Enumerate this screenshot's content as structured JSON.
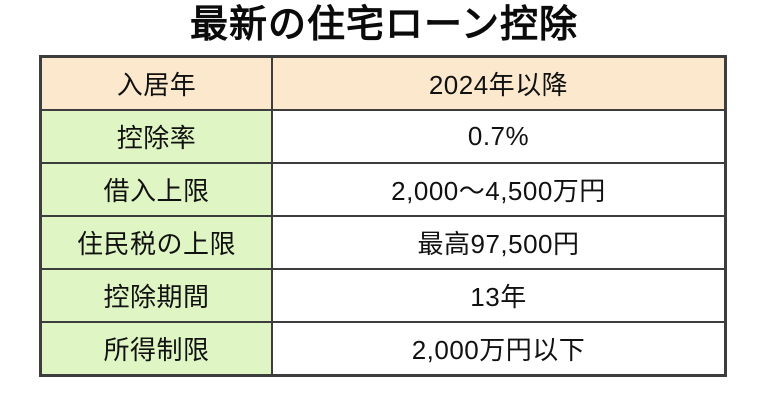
{
  "title": "最新の住宅ローン控除",
  "table": {
    "rows": [
      {
        "label": "入居年",
        "value": "2024年以降"
      },
      {
        "label": "控除率",
        "value": "0.7%"
      },
      {
        "label": "借入上限",
        "value": "2,000〜4,500万円"
      },
      {
        "label": "住民税の上限",
        "value": "最高97,500円"
      },
      {
        "label": "控除期間",
        "value": "13年"
      },
      {
        "label": "所得制限",
        "value": "2,000万円以下"
      }
    ]
  },
  "colors": {
    "header_row_bg": "#fce9cd",
    "label_column_bg": "#dff5c3",
    "value_cell_bg": "#ffffff",
    "border": "#3d3d3d",
    "text": "#111111",
    "page_bg": "#ffffff"
  },
  "chart_data": {
    "type": "table",
    "title": "最新の住宅ローン控除",
    "header_row": [
      "入居年",
      "2024年以降"
    ],
    "rows": [
      [
        "入居年",
        "2024年以降"
      ],
      [
        "控除率",
        "0.7%"
      ],
      [
        "借入上限",
        "2,000〜4,500万円"
      ],
      [
        "住民税の上限",
        "最高97,500円"
      ],
      [
        "控除期間",
        "13年"
      ],
      [
        "所得制限",
        "2,000万円以下"
      ]
    ],
    "layout": {
      "columns": 2,
      "first_row_highlighted": true,
      "label_column_highlighted": true
    }
  }
}
